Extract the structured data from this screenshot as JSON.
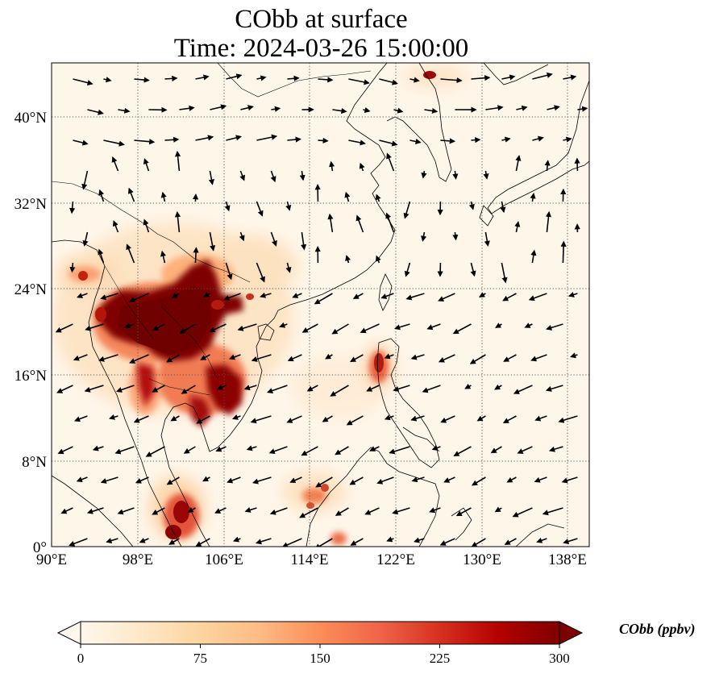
{
  "title_line1": "CObb at surface",
  "title_line2": "Time: 2024-03-26 15:00:00",
  "lon_labels": [
    "90°E",
    "98°E",
    "106°E",
    "114°E",
    "122°E",
    "130°E",
    "138°E"
  ],
  "lat_labels": [
    "40°N",
    "32°N",
    "24°N",
    "16°N",
    "8°N",
    "0°"
  ],
  "lon_values": [
    90,
    98,
    106,
    114,
    122,
    130,
    138
  ],
  "lat_values": [
    40,
    32,
    24,
    16,
    8,
    0
  ],
  "extent": {
    "lon": [
      90,
      140
    ],
    "lat": [
      0,
      45
    ]
  },
  "colorbar": {
    "label": "CObb (ppbv)",
    "ticks": [
      "0",
      "75",
      "150",
      "225",
      "300"
    ],
    "tick_values": [
      0,
      75,
      150,
      225,
      300
    ],
    "range": [
      0,
      300
    ],
    "colormap": "OrRd",
    "colors": [
      "#fff7ec",
      "#fee8c8",
      "#fdd49e",
      "#fdbb84",
      "#fc8d59",
      "#ef6548",
      "#d7301f",
      "#b30000",
      "#7f0000"
    ]
  }
}
